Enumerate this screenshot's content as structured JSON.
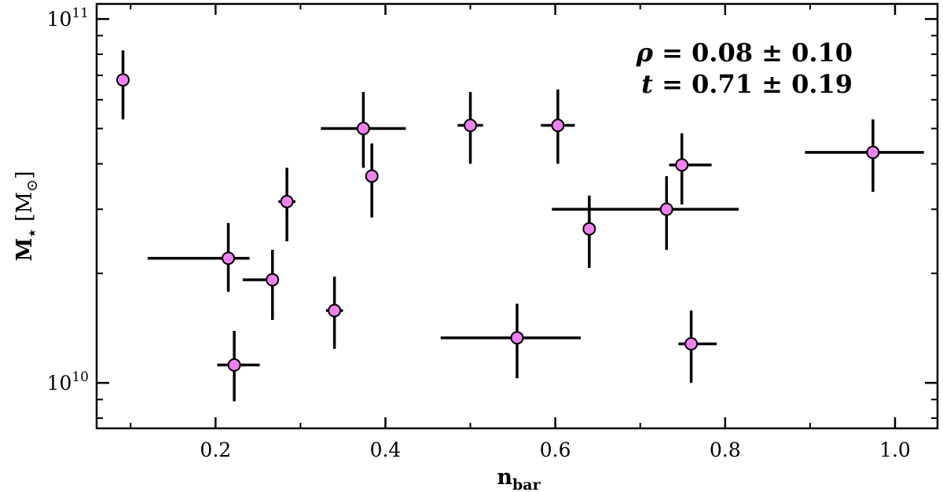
{
  "chart_data": {
    "type": "scatter",
    "title": "",
    "xlabel": {
      "base": "n",
      "sub": "bar"
    },
    "ylabel": {
      "base": "M",
      "sub": "⋆",
      "unit_open": " [M",
      "unit_sub": "⊙",
      "unit_close": "]"
    },
    "xlim": [
      0.06,
      1.05
    ],
    "ylim": [
      7500000000.0,
      110000000000.0
    ],
    "yscale": "log",
    "x_ticks": [
      0.2,
      0.4,
      0.6,
      0.8,
      1.0
    ],
    "x_tick_labels": [
      "0.2",
      "0.4",
      "0.6",
      "0.8",
      "1.0"
    ],
    "y_ticks": [
      10000000000.0,
      100000000000.0
    ],
    "y_tick_labels": [
      {
        "base": "10",
        "exp": "10"
      },
      {
        "base": "10",
        "exp": "11"
      }
    ],
    "grid": false,
    "marker_color": "#ee82ee",
    "marker_edge": "#000000",
    "annotations": [
      {
        "symbol": "ρ",
        "text": " = 0.08 ± 0.10"
      },
      {
        "symbol": "t",
        "text": " = 0.71 ± 0.19"
      }
    ],
    "points": [
      {
        "x": 0.091,
        "y": 68000000000.0,
        "xerr": [
          0,
          0
        ],
        "yerr": [
          15000000000.0,
          14000000000.0
        ]
      },
      {
        "x": 0.215,
        "y": 22000000000.0,
        "xerr": [
          0.095,
          0.025
        ],
        "yerr": [
          4200000000.0,
          5500000000.0
        ]
      },
      {
        "x": 0.222,
        "y": 11200000000.0,
        "xerr": [
          0.02,
          0.03
        ],
        "yerr": [
          2300000000.0,
          2700000000.0
        ]
      },
      {
        "x": 0.267,
        "y": 19200000000.0,
        "xerr": [
          0.035,
          0.0
        ],
        "yerr": [
          4300000000.0,
          4000000000.0
        ]
      },
      {
        "x": 0.284,
        "y": 31500000000.0,
        "xerr": [
          0.01,
          0.01
        ],
        "yerr": [
          7000000000.0,
          7500000000.0
        ]
      },
      {
        "x": 0.34,
        "y": 15800000000.0,
        "xerr": [
          0.01,
          0.01
        ],
        "yerr": [
          3400000000.0,
          3800000000.0
        ]
      },
      {
        "x": 0.374,
        "y": 50000000000.0,
        "xerr": [
          0.05,
          0.05
        ],
        "yerr": [
          11000000000.0,
          13000000000.0
        ]
      },
      {
        "x": 0.384,
        "y": 37000000000.0,
        "xerr": [
          0.0,
          0.0
        ],
        "yerr": [
          8500000000.0,
          8500000000.0
        ]
      },
      {
        "x": 0.5,
        "y": 51000000000.0,
        "xerr": [
          0.015,
          0.015
        ],
        "yerr": [
          11000000000.0,
          12000000000.0
        ]
      },
      {
        "x": 0.555,
        "y": 13300000000.0,
        "xerr": [
          0.09,
          0.075
        ],
        "yerr": [
          3000000000.0,
          3200000000.0
        ]
      },
      {
        "x": 0.603,
        "y": 51000000000.0,
        "xerr": [
          0.02,
          0.02
        ],
        "yerr": [
          11000000000.0,
          13000000000.0
        ]
      },
      {
        "x": 0.64,
        "y": 26500000000.0,
        "xerr": [
          0.0,
          0.0
        ],
        "yerr": [
          5800000000.0,
          6200000000.0
        ]
      },
      {
        "x": 0.731,
        "y": 30000000000.0,
        "xerr": [
          0.135,
          0.085
        ],
        "yerr": [
          6800000000.0,
          7000000000.0
        ]
      },
      {
        "x": 0.749,
        "y": 39700000000.0,
        "xerr": [
          0.015,
          0.035
        ],
        "yerr": [
          8800000000.0,
          8800000000.0
        ]
      },
      {
        "x": 0.76,
        "y": 12800000000.0,
        "xerr": [
          0.015,
          0.03
        ],
        "yerr": [
          2800000000.0,
          3000000000.0
        ]
      },
      {
        "x": 0.974,
        "y": 43000000000.0,
        "xerr": [
          0.08,
          0.06
        ],
        "yerr": [
          9500000000.0,
          10000000000.0
        ]
      }
    ]
  }
}
